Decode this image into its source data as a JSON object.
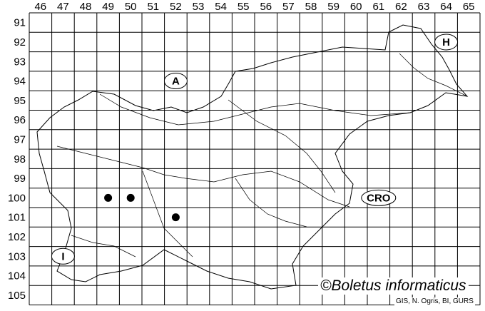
{
  "map": {
    "columns": [
      "46",
      "47",
      "48",
      "49",
      "50",
      "51",
      "52",
      "53",
      "54",
      "55",
      "56",
      "57",
      "58",
      "59",
      "60",
      "61",
      "62",
      "63",
      "64",
      "65"
    ],
    "rows": [
      "91",
      "92",
      "93",
      "94",
      "95",
      "96",
      "97",
      "98",
      "99",
      "100",
      "101",
      "102",
      "103",
      "104",
      "105"
    ],
    "country_labels": [
      {
        "id": "A",
        "text": "A",
        "col": "52",
        "row": "94"
      },
      {
        "id": "H",
        "text": "H",
        "col": "64",
        "row": "92"
      },
      {
        "id": "CRO",
        "text": "CRO",
        "col": "61",
        "row": "100"
      },
      {
        "id": "I",
        "text": "I",
        "col": "47",
        "row": "103"
      }
    ],
    "occurrences": [
      {
        "col": "49",
        "row": "100"
      },
      {
        "col": "50",
        "row": "100"
      },
      {
        "col": "52",
        "row": "101"
      }
    ],
    "copyright": "©Boletus informaticus",
    "credit": "GIS, N. Ogris, BI, GURS"
  }
}
